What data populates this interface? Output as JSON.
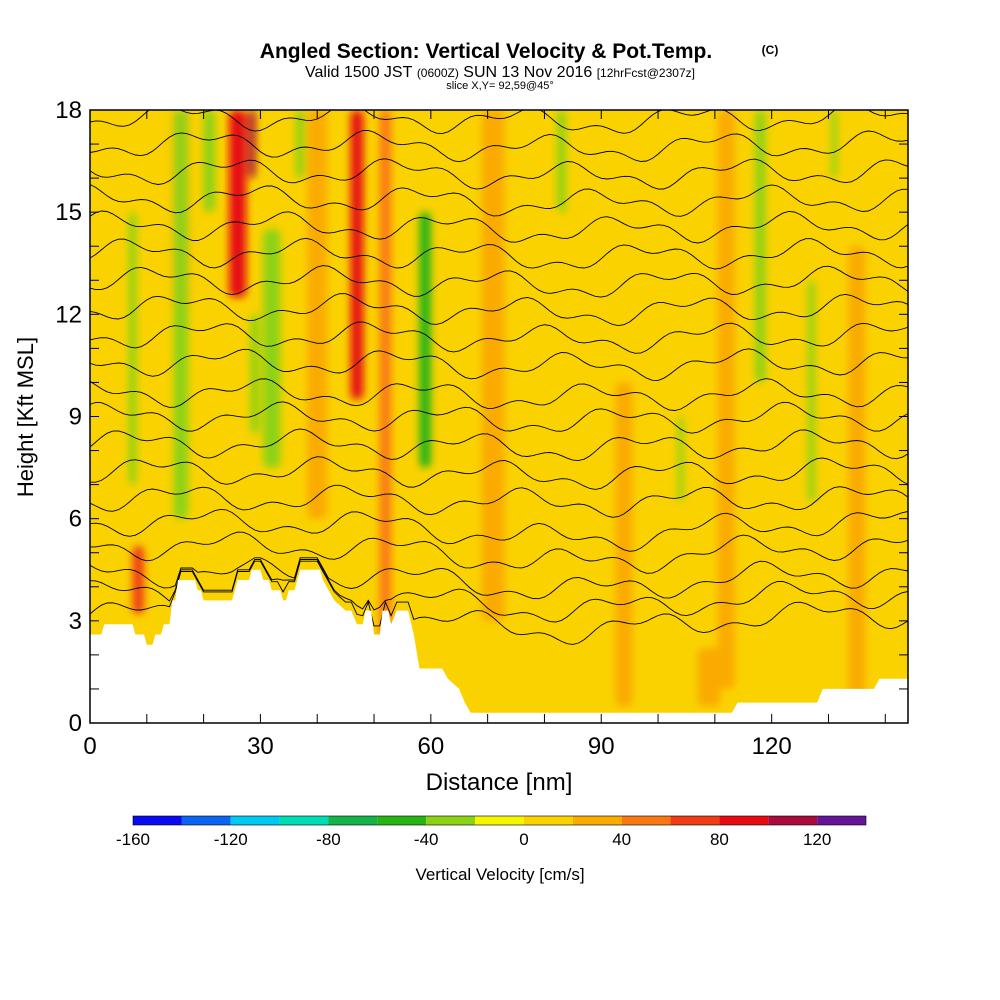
{
  "chart_data": {
    "type": "heatmap",
    "title": "Angled Section: Vertical Velocity & Pot.Temp.",
    "title_unit": "(C)",
    "subtitle": {
      "valid": "Valid 1500 JST",
      "utc": "(0600Z)",
      "date": "SUN 13 Nov 2016",
      "fcst": "[12hrFcst@2307z]"
    },
    "slice_label": "slice X,Y= 92,59@45°",
    "xlabel": "Distance [nm]",
    "ylabel": "Height [Kft MSL]",
    "xlim": [
      0,
      144
    ],
    "ylim": [
      0,
      18
    ],
    "x_ticks": [
      "0",
      "30",
      "60",
      "90",
      "120"
    ],
    "x_tick_values": [
      0,
      30,
      60,
      90,
      120
    ],
    "y_ticks": [
      "0",
      "3",
      "6",
      "9",
      "12",
      "15",
      "18"
    ],
    "y_tick_values": [
      0,
      3,
      6,
      9,
      12,
      15,
      18
    ],
    "colorbar": {
      "label": "Vertical Velocity [cm/s]",
      "range": [
        -160,
        140
      ],
      "step": 20,
      "tick_labels": [
        "-160",
        "-120",
        "-80",
        "-40",
        "0",
        "40",
        "80",
        "120"
      ],
      "tick_values": [
        -160,
        -120,
        -80,
        -40,
        0,
        40,
        80,
        120
      ],
      "colors": [
        "#0a0af0",
        "#0a64f0",
        "#00c8f0",
        "#00dcb4",
        "#14b44b",
        "#28b414",
        "#8cd214",
        "#f5f500",
        "#fad200",
        "#faaa00",
        "#fa7814",
        "#f03c14",
        "#e60a14",
        "#aa0a3c",
        "#641496"
      ]
    },
    "background_value": 0,
    "updraft_bands": [
      {
        "x": 26,
        "z0": 12.5,
        "z1": 18,
        "w": 3.0,
        "value": 90
      },
      {
        "x": 28.5,
        "z0": 16,
        "z1": 18,
        "w": 1.2,
        "value": 110
      },
      {
        "x": 47,
        "z0": 9.5,
        "z1": 18,
        "w": 2.2,
        "value": 80
      },
      {
        "x": 8.5,
        "z0": 3.2,
        "z1": 5.2,
        "w": 2.0,
        "value": 60
      },
      {
        "x": 16,
        "z0": 12,
        "z1": 18,
        "w": 3.0,
        "value": 25
      },
      {
        "x": 40,
        "z0": 6,
        "z1": 18,
        "w": 3.5,
        "value": 25
      },
      {
        "x": 71,
        "z0": 3,
        "z1": 18,
        "w": 4.0,
        "value": 25
      },
      {
        "x": 94,
        "z0": 0.5,
        "z1": 10,
        "w": 3.0,
        "value": 25
      },
      {
        "x": 112,
        "z0": 1,
        "z1": 18,
        "w": 3.0,
        "value": 25
      },
      {
        "x": 135,
        "z0": 0,
        "z1": 14,
        "w": 3.0,
        "value": 25
      },
      {
        "x": 52,
        "z0": 1,
        "z1": 18,
        "w": 2.0,
        "value": 45
      },
      {
        "x": 109,
        "z0": 0.5,
        "z1": 2.2,
        "w": 4.0,
        "value": 25
      }
    ],
    "downdraft_bands": [
      {
        "x": 16,
        "z0": 6,
        "z1": 18,
        "w": 2.5,
        "value": -35
      },
      {
        "x": 32,
        "z0": 7.5,
        "z1": 14.5,
        "w": 3.0,
        "value": -40
      },
      {
        "x": 59,
        "z0": 7.5,
        "z1": 15,
        "w": 2.0,
        "value": -60
      },
      {
        "x": 7.5,
        "z0": 7,
        "z1": 15,
        "w": 1.3,
        "value": -25
      },
      {
        "x": 21,
        "z0": 15,
        "z1": 18,
        "w": 2.0,
        "value": -25
      },
      {
        "x": 29,
        "z0": 8.5,
        "z1": 12,
        "w": 1.5,
        "value": -25
      },
      {
        "x": 37,
        "z0": 16,
        "z1": 18,
        "w": 1.5,
        "value": -25
      },
      {
        "x": 83,
        "z0": 15,
        "z1": 18,
        "w": 1.5,
        "value": -25
      },
      {
        "x": 104,
        "z0": 6.5,
        "z1": 9,
        "w": 1.0,
        "value": -25
      },
      {
        "x": 118,
        "z0": 10,
        "z1": 18,
        "w": 1.8,
        "value": -30
      },
      {
        "x": 127,
        "z0": 6.5,
        "z1": 13,
        "w": 1.2,
        "value": -25
      },
      {
        "x": 131,
        "z0": 16,
        "z1": 18,
        "w": 1.0,
        "value": -25
      }
    ],
    "terrain_heights": [
      [
        0,
        2.6
      ],
      [
        2,
        2.6
      ],
      [
        2.5,
        2.9
      ],
      [
        7.5,
        2.9
      ],
      [
        8,
        2.6
      ],
      [
        9.5,
        2.6
      ],
      [
        10,
        2.3
      ],
      [
        11,
        2.3
      ],
      [
        11.5,
        2.6
      ],
      [
        12.5,
        2.6
      ],
      [
        13,
        2.9
      ],
      [
        14,
        2.9
      ],
      [
        14.5,
        3.6
      ],
      [
        15,
        3.6
      ],
      [
        15.5,
        4.2
      ],
      [
        18.5,
        4.2
      ],
      [
        19,
        3.9
      ],
      [
        19.5,
        3.9
      ],
      [
        20,
        3.6
      ],
      [
        22.5,
        3.6
      ],
      [
        23,
        3.6
      ],
      [
        25,
        3.6
      ],
      [
        25.5,
        3.9
      ],
      [
        26,
        4.2
      ],
      [
        28,
        4.2
      ],
      [
        28.5,
        4.5
      ],
      [
        30,
        4.5
      ],
      [
        30.5,
        4.2
      ],
      [
        31.5,
        4.2
      ],
      [
        32,
        3.9
      ],
      [
        33.5,
        3.9
      ],
      [
        34,
        3.6
      ],
      [
        34.5,
        3.6
      ],
      [
        35,
        3.9
      ],
      [
        36,
        3.9
      ],
      [
        36.5,
        4.2
      ],
      [
        37,
        4.5
      ],
      [
        40.5,
        4.5
      ],
      [
        41,
        4.2
      ],
      [
        42,
        3.9
      ],
      [
        43,
        3.6
      ],
      [
        45,
        3.3
      ],
      [
        46,
        3.3
      ],
      [
        47,
        2.9
      ],
      [
        48,
        2.9
      ],
      [
        48.5,
        3.3
      ],
      [
        49.5,
        3.3
      ],
      [
        50,
        2.6
      ],
      [
        51,
        2.6
      ],
      [
        51.5,
        3.3
      ],
      [
        52.5,
        3.3
      ],
      [
        53,
        2.9
      ],
      [
        54,
        3.3
      ],
      [
        56,
        3.3
      ],
      [
        57,
        2.6
      ],
      [
        58,
        1.6
      ],
      [
        59,
        1.6
      ],
      [
        62,
        1.6
      ],
      [
        63,
        1.3
      ],
      [
        65,
        1.0
      ],
      [
        66,
        0.6
      ],
      [
        67,
        0.3
      ],
      [
        68,
        0.3
      ],
      [
        113,
        0.3
      ],
      [
        114,
        0.6
      ],
      [
        128,
        0.6
      ],
      [
        129,
        1.0
      ],
      [
        138,
        1.0
      ],
      [
        139,
        1.3
      ],
      [
        144,
        1.3
      ]
    ],
    "isentropes": [
      {
        "z": 3.2
      },
      {
        "z": 3.8
      },
      {
        "z": 4.4
      },
      {
        "z": 5.2
      },
      {
        "z": 5.9
      },
      {
        "z": 6.6
      },
      {
        "z": 7.4
      },
      {
        "z": 8.2
      },
      {
        "z": 9.0
      },
      {
        "z": 9.7
      },
      {
        "z": 10.6
      },
      {
        "z": 11.4
      },
      {
        "z": 12.2
      },
      {
        "z": 13.0
      },
      {
        "z": 13.8
      },
      {
        "z": 14.6
      },
      {
        "z": 15.4
      },
      {
        "z": 16.2
      },
      {
        "z": 17.0
      },
      {
        "z": 17.8
      }
    ]
  }
}
